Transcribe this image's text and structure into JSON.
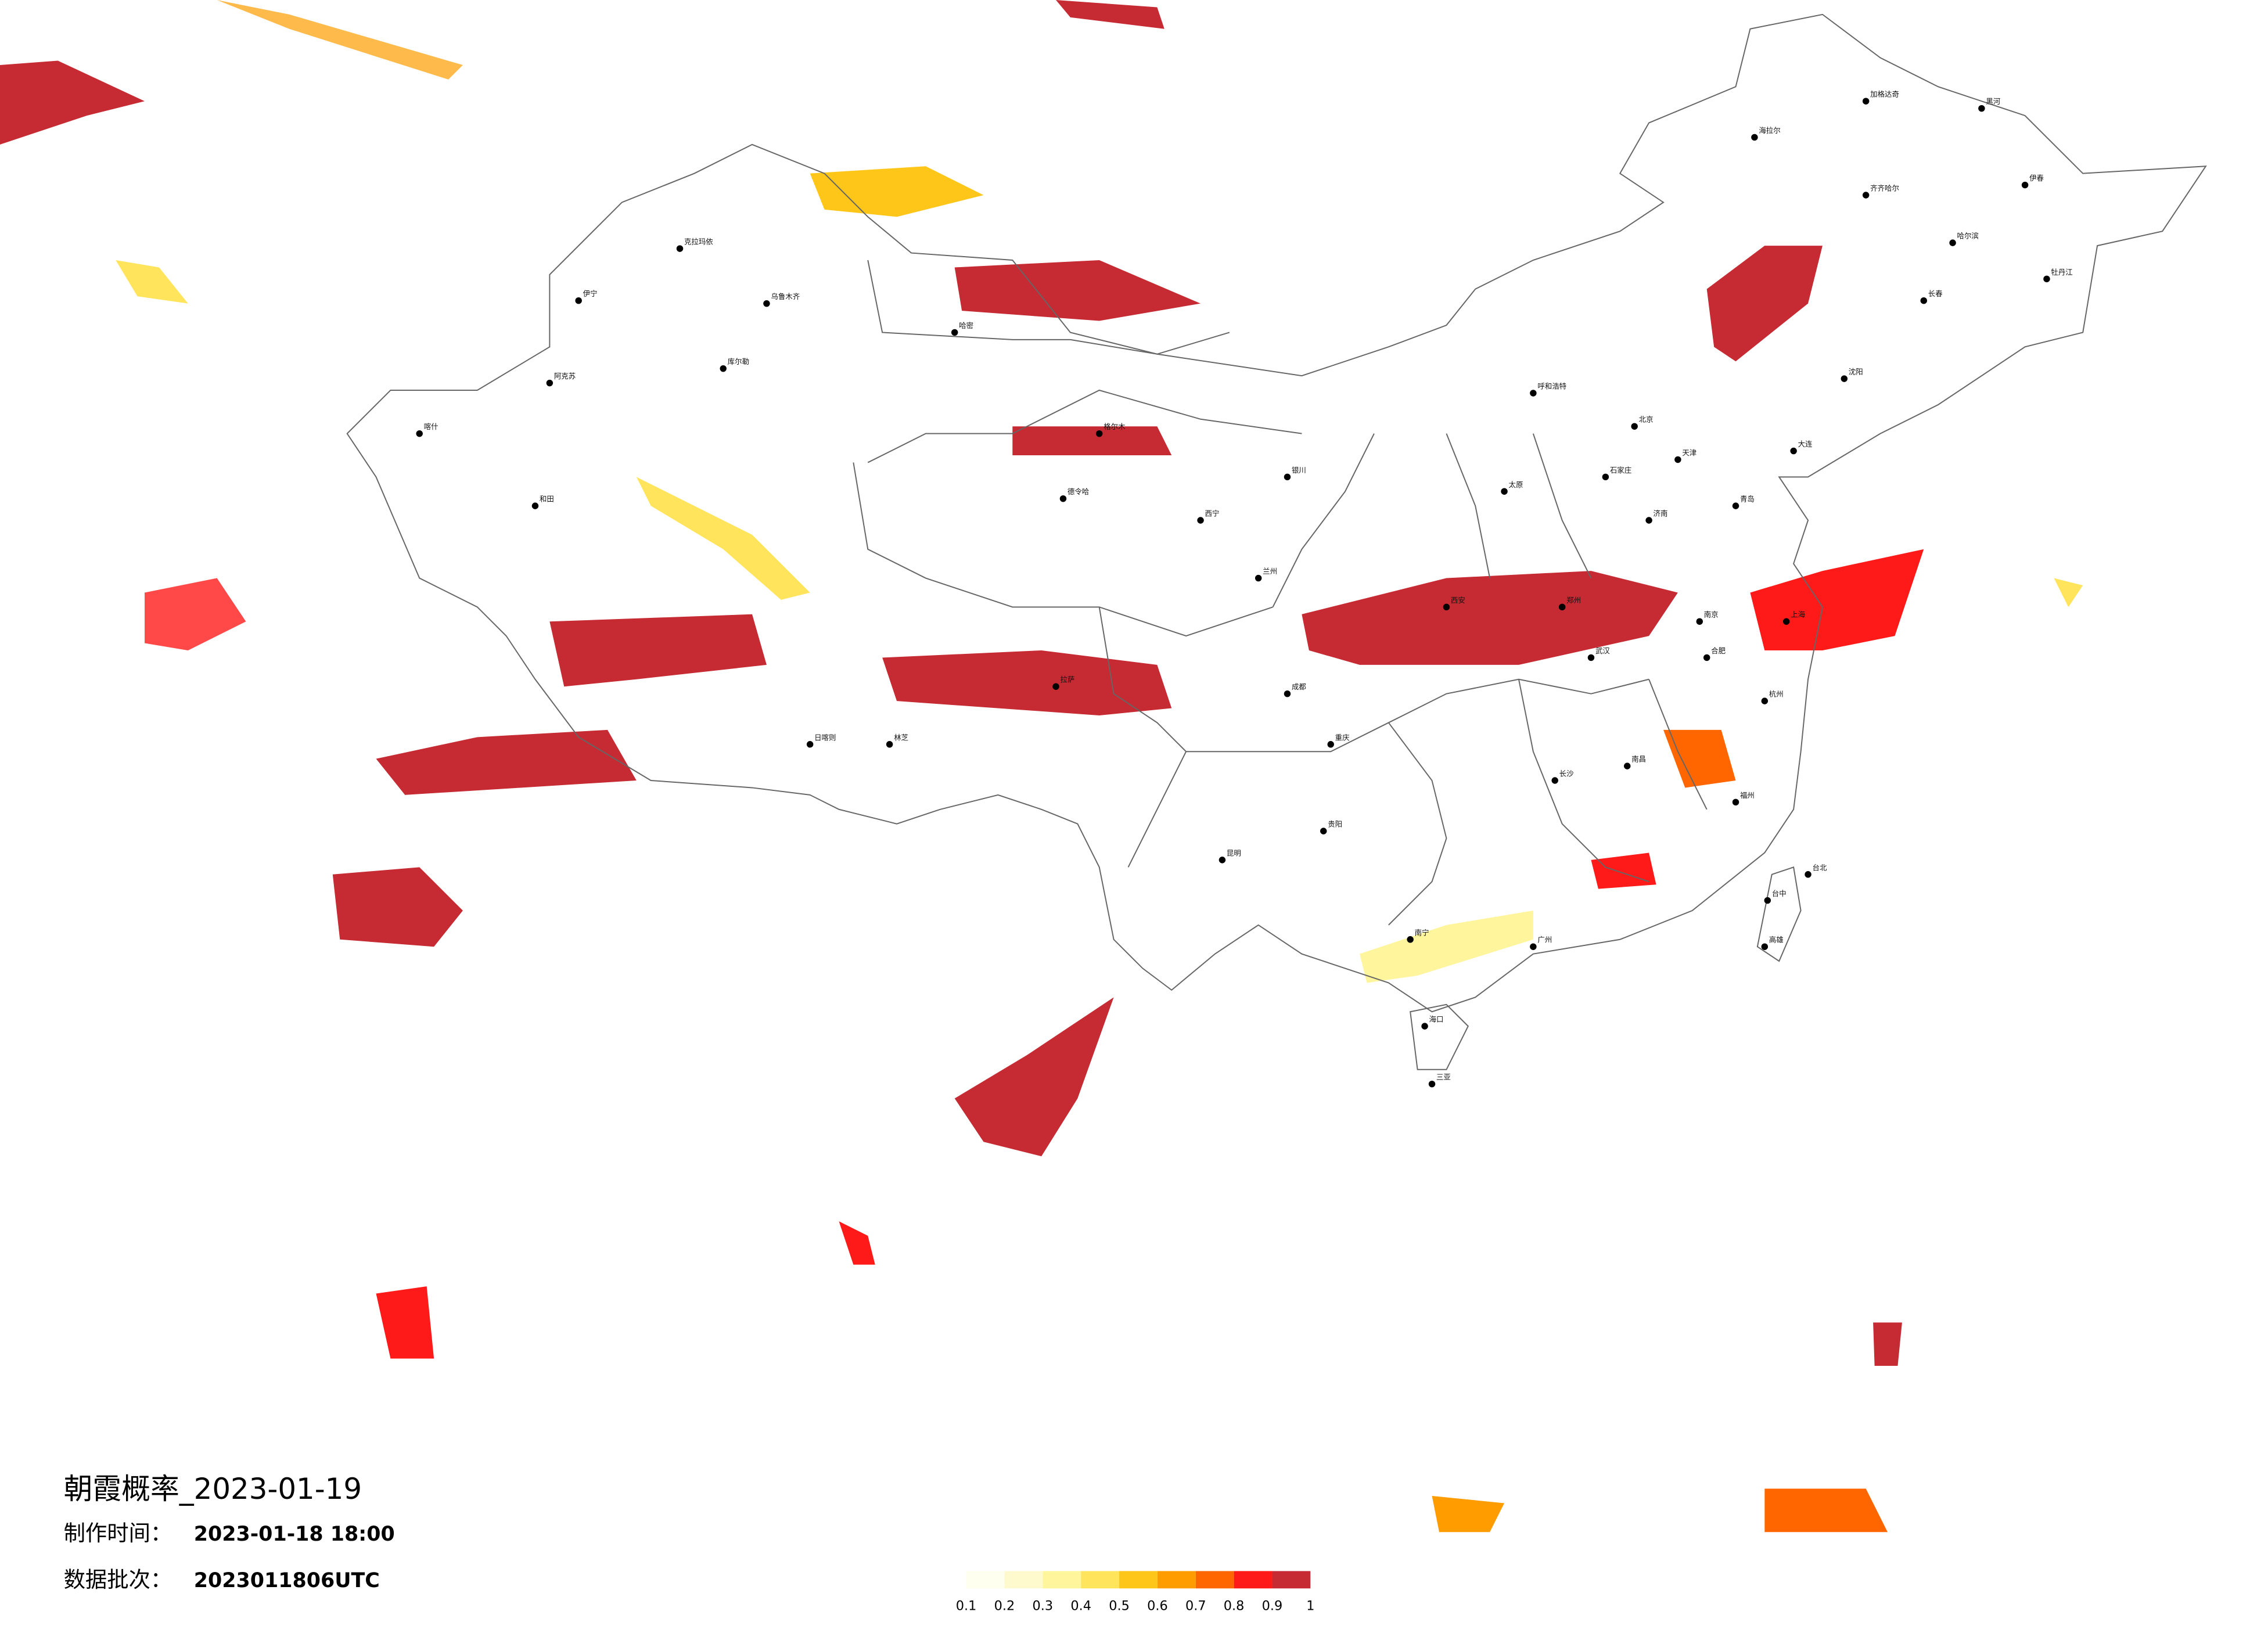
{
  "header": {
    "title": "朝霞概率_2023-01-19",
    "made_label": "制作时间：",
    "made_time": "2023-01-18 18:00",
    "batch_label": "数据批次：",
    "batch": "2023011806UTC"
  },
  "legend": {
    "ticks": [
      0.1,
      0.2,
      0.3,
      0.4,
      0.5,
      0.6,
      0.7,
      0.8,
      0.9,
      1
    ],
    "colors": [
      "#fffff0",
      "#fffacd",
      "#fff59d",
      "#ffe45c",
      "#ffc61a",
      "#ff9d00",
      "#ff6600",
      "#ff1a1a",
      "#c62a32"
    ]
  },
  "cities": [
    "海拉尔",
    "加格达奇",
    "黑河",
    "齐齐哈尔",
    "伊春",
    "哈尔滨",
    "牡丹江",
    "长春",
    "沈阳",
    "大连",
    "北京",
    "天津",
    "石家庄",
    "太原",
    "济南",
    "青岛",
    "呼和浩特",
    "郑州",
    "西安",
    "兰州",
    "西宁",
    "银川",
    "乌鲁木齐",
    "克拉玛依",
    "伊宁",
    "阿克苏",
    "和田",
    "喀什",
    "库尔勒",
    "哈密",
    "格尔木",
    "德令哈",
    "拉萨",
    "日喀则",
    "林芝",
    "成都",
    "重庆",
    "贵阳",
    "昆明",
    "南宁",
    "广州",
    "海口",
    "三亚",
    "长沙",
    "武汉",
    "南昌",
    "福州",
    "杭州",
    "南京",
    "上海",
    "合肥",
    "台北",
    "台中",
    "高雄"
  ]
}
